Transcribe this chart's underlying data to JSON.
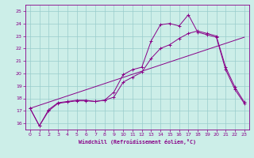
{
  "background_color": "#cceee8",
  "line_color": "#880088",
  "grid_color": "#99cccc",
  "xlim": [
    -0.5,
    23.5
  ],
  "ylim": [
    15.5,
    25.5
  ],
  "yticks": [
    16,
    17,
    18,
    19,
    20,
    21,
    22,
    23,
    24,
    25
  ],
  "xticks": [
    0,
    1,
    2,
    3,
    4,
    5,
    6,
    7,
    8,
    9,
    10,
    11,
    12,
    13,
    14,
    15,
    16,
    17,
    18,
    19,
    20,
    21,
    22,
    23
  ],
  "xlabel": "Windchill (Refroidissement éolien,°C)",
  "series1_x": [
    0,
    1,
    2,
    3,
    4,
    5,
    6,
    7,
    8,
    9,
    10,
    11,
    12,
    13,
    14,
    15,
    16,
    17,
    18,
    19,
    20,
    21,
    22,
    23
  ],
  "series1_y": [
    17.2,
    15.8,
    17.0,
    17.6,
    17.7,
    17.8,
    17.8,
    17.75,
    17.85,
    18.5,
    19.9,
    20.3,
    20.5,
    22.6,
    23.9,
    24.0,
    23.8,
    24.7,
    23.3,
    23.1,
    22.9,
    20.3,
    18.7,
    17.6
  ],
  "series2_x": [
    0,
    1,
    2,
    3,
    4,
    5,
    6,
    7,
    8,
    9,
    10,
    11,
    12,
    13,
    14,
    15,
    16,
    17,
    18,
    19,
    20,
    21,
    22,
    23
  ],
  "series2_y": [
    17.2,
    15.8,
    17.1,
    17.65,
    17.75,
    17.85,
    17.85,
    17.75,
    17.85,
    18.1,
    19.3,
    19.7,
    20.1,
    21.2,
    22.0,
    22.3,
    22.8,
    23.2,
    23.4,
    23.2,
    23.0,
    20.5,
    18.9,
    17.7
  ],
  "series3_x": [
    0,
    23
  ],
  "series3_y": [
    17.2,
    22.9
  ]
}
